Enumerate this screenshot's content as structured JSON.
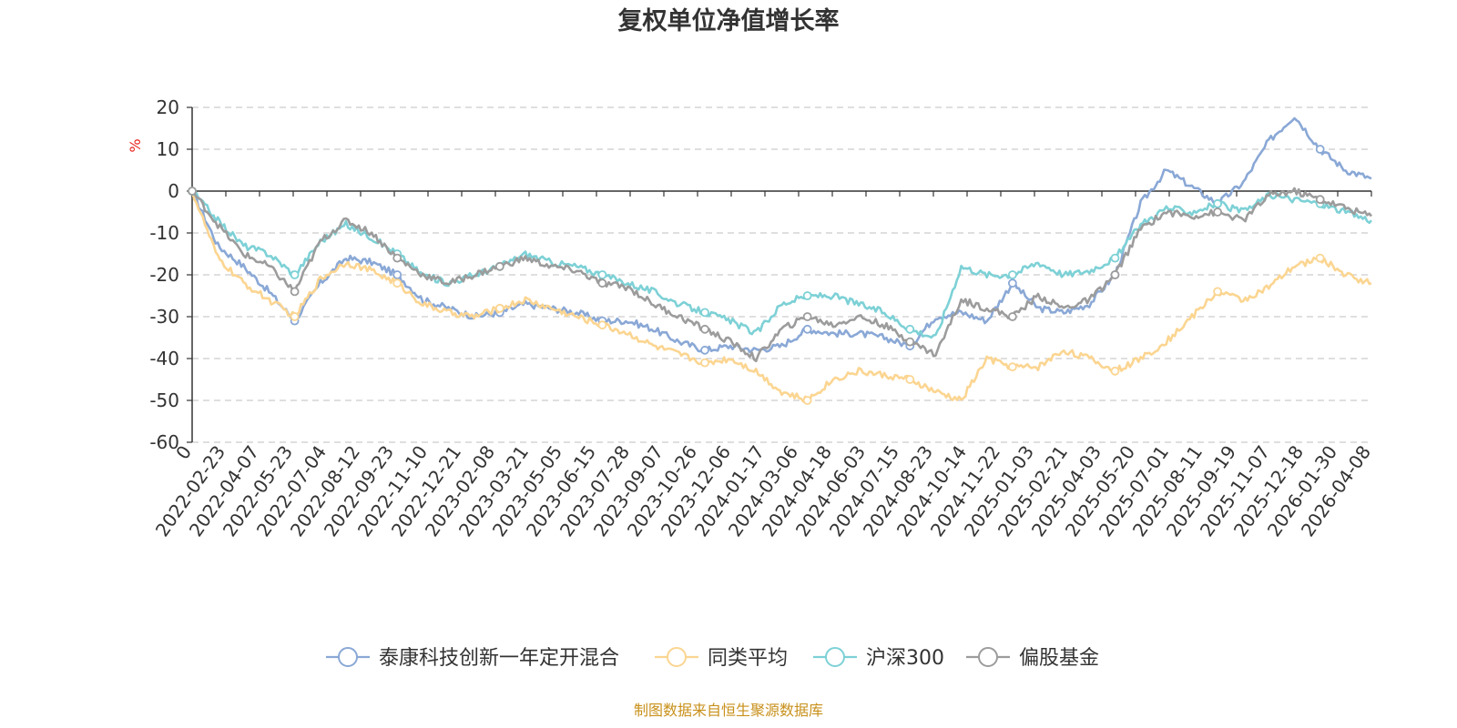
{
  "chart_data": {
    "type": "line",
    "title": "复权单位净值增长率",
    "ylabel": "%",
    "ylim": [
      -60,
      20
    ],
    "yticks": [
      20,
      10,
      0,
      -10,
      -20,
      -30,
      -40,
      -50,
      -60
    ],
    "grid": true,
    "legend_position": "bottom-center",
    "x_tick_labels": [
      "0",
      "2022-02-23",
      "2022-04-07",
      "2022-05-23",
      "2022-07-04",
      "2022-08-12",
      "2022-09-23",
      "2022-11-10",
      "2022-12-21",
      "2023-02-08",
      "2023-03-21",
      "2023-05-05",
      "2023-06-15",
      "2023-07-28",
      "2023-09-07",
      "2023-10-26",
      "2023-12-06",
      "2024-01-17",
      "2024-03-06",
      "2024-04-18",
      "2024-06-03",
      "2024-07-15",
      "2024-08-23",
      "2024-10-14",
      "2024-11-22",
      "2025-01-03",
      "2025-02-21",
      "2025-04-03",
      "2025-05-20",
      "2025-07-01",
      "2025-08-11",
      "2025-09-19",
      "2025-11-07",
      "2025-12-18",
      "2026-01-30",
      "2026-04-08"
    ],
    "series": [
      {
        "name": "泰康科技创新一年定开混合",
        "color": "#8aa8d6",
        "values": [
          0,
          -13,
          -18,
          -24,
          -31,
          -22,
          -16,
          -17,
          -20,
          -26,
          -28,
          -30,
          -29,
          -27,
          -28,
          -29,
          -31,
          -31,
          -33,
          -36,
          -38,
          -37,
          -38,
          -37,
          -33,
          -34,
          -34,
          -35,
          -37,
          -30,
          -29,
          -31,
          -22,
          -28,
          -29,
          -27,
          -20,
          -3,
          5,
          1,
          -3,
          2,
          12,
          18,
          10,
          5,
          3
        ]
      },
      {
        "name": "同类平均",
        "color": "#fbd591",
        "values": [
          0,
          -16,
          -22,
          -26,
          -30,
          -21,
          -17,
          -19,
          -22,
          -27,
          -29,
          -30,
          -28,
          -26,
          -28,
          -30,
          -32,
          -34,
          -37,
          -39,
          -41,
          -40,
          -43,
          -48,
          -50,
          -45,
          -43,
          -44,
          -45,
          -48,
          -50,
          -40,
          -42,
          -42,
          -38,
          -40,
          -43,
          -40,
          -36,
          -30,
          -24,
          -26,
          -23,
          -18,
          -16,
          -20,
          -22
        ]
      },
      {
        "name": "沪深300",
        "color": "#7dd1d6",
        "values": [
          0,
          -7,
          -13,
          -15,
          -20,
          -12,
          -8,
          -11,
          -15,
          -20,
          -22,
          -20,
          -18,
          -15,
          -17,
          -18,
          -20,
          -22,
          -24,
          -27,
          -29,
          -31,
          -34,
          -27,
          -25,
          -25,
          -27,
          -29,
          -33,
          -35,
          -18,
          -20,
          -20,
          -17,
          -20,
          -19,
          -16,
          -8,
          -4,
          -5,
          -3,
          -5,
          -1,
          -2,
          -3,
          -5,
          -7
        ]
      },
      {
        "name": "偏股基金",
        "color": "#9c9c9c",
        "values": [
          0,
          -8,
          -15,
          -18,
          -24,
          -12,
          -7,
          -10,
          -16,
          -20,
          -22,
          -20,
          -18,
          -16,
          -18,
          -19,
          -22,
          -23,
          -27,
          -30,
          -33,
          -36,
          -40,
          -33,
          -30,
          -32,
          -30,
          -32,
          -36,
          -39,
          -26,
          -28,
          -30,
          -25,
          -28,
          -26,
          -20,
          -9,
          -5,
          -6,
          -5,
          -7,
          -1,
          0,
          -2,
          -4,
          -6
        ]
      }
    ],
    "source_note": "制图数据来自恒生聚源数据库"
  }
}
